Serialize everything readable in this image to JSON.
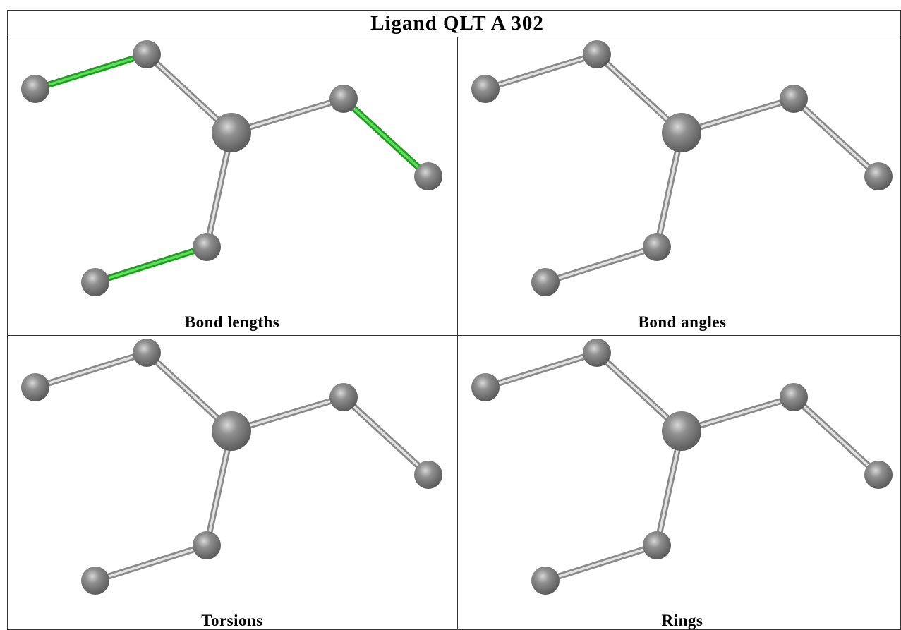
{
  "header": {
    "title": "Ligand QLT A 302"
  },
  "panels": [
    {
      "label": "Bond lengths"
    },
    {
      "label": "Bond angles"
    },
    {
      "label": "Torsions"
    },
    {
      "label": "Rings"
    }
  ]
}
